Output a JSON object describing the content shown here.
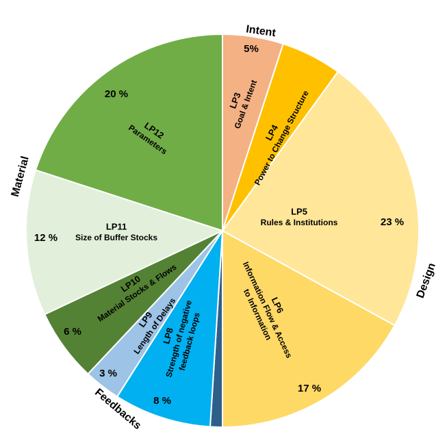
{
  "chart_data": {
    "type": "pie",
    "categories": [
      "LP3",
      "LP4",
      "LP5",
      "LP6",
      null,
      "LP8",
      "LP9",
      "LP10",
      "LP11",
      "LP12"
    ],
    "sublabels": [
      [
        "Goal & Intent"
      ],
      [
        "Power to Change Structure"
      ],
      [
        "Rules & Institutions"
      ],
      [
        "Information Flow & Access",
        "to Information"
      ],
      [],
      [
        "Strength of  negative",
        "feedback loops"
      ],
      [
        "Length of Delays"
      ],
      [
        "Material Stocks & Flows"
      ],
      [
        "Size of Buffer Stocks"
      ],
      [
        "Parameters"
      ]
    ],
    "values": [
      5,
      5,
      23,
      17,
      1,
      8,
      3,
      6,
      12,
      20
    ],
    "value_labels": [
      "5%",
      null,
      "23 %",
      "17 %",
      null,
      "8 %",
      "3 %",
      "6 %",
      "12 %",
      "20 %"
    ],
    "colors": [
      "#f4b183",
      "#ffc000",
      "#ffe699",
      "#ffd966",
      "#2e5f8a",
      "#00b0f0",
      "#9dc3e6",
      "#548235",
      "#e2efda",
      "#70ad47"
    ],
    "groups": [
      "Intent",
      "Design",
      "Feedbacks",
      "Material"
    ]
  }
}
